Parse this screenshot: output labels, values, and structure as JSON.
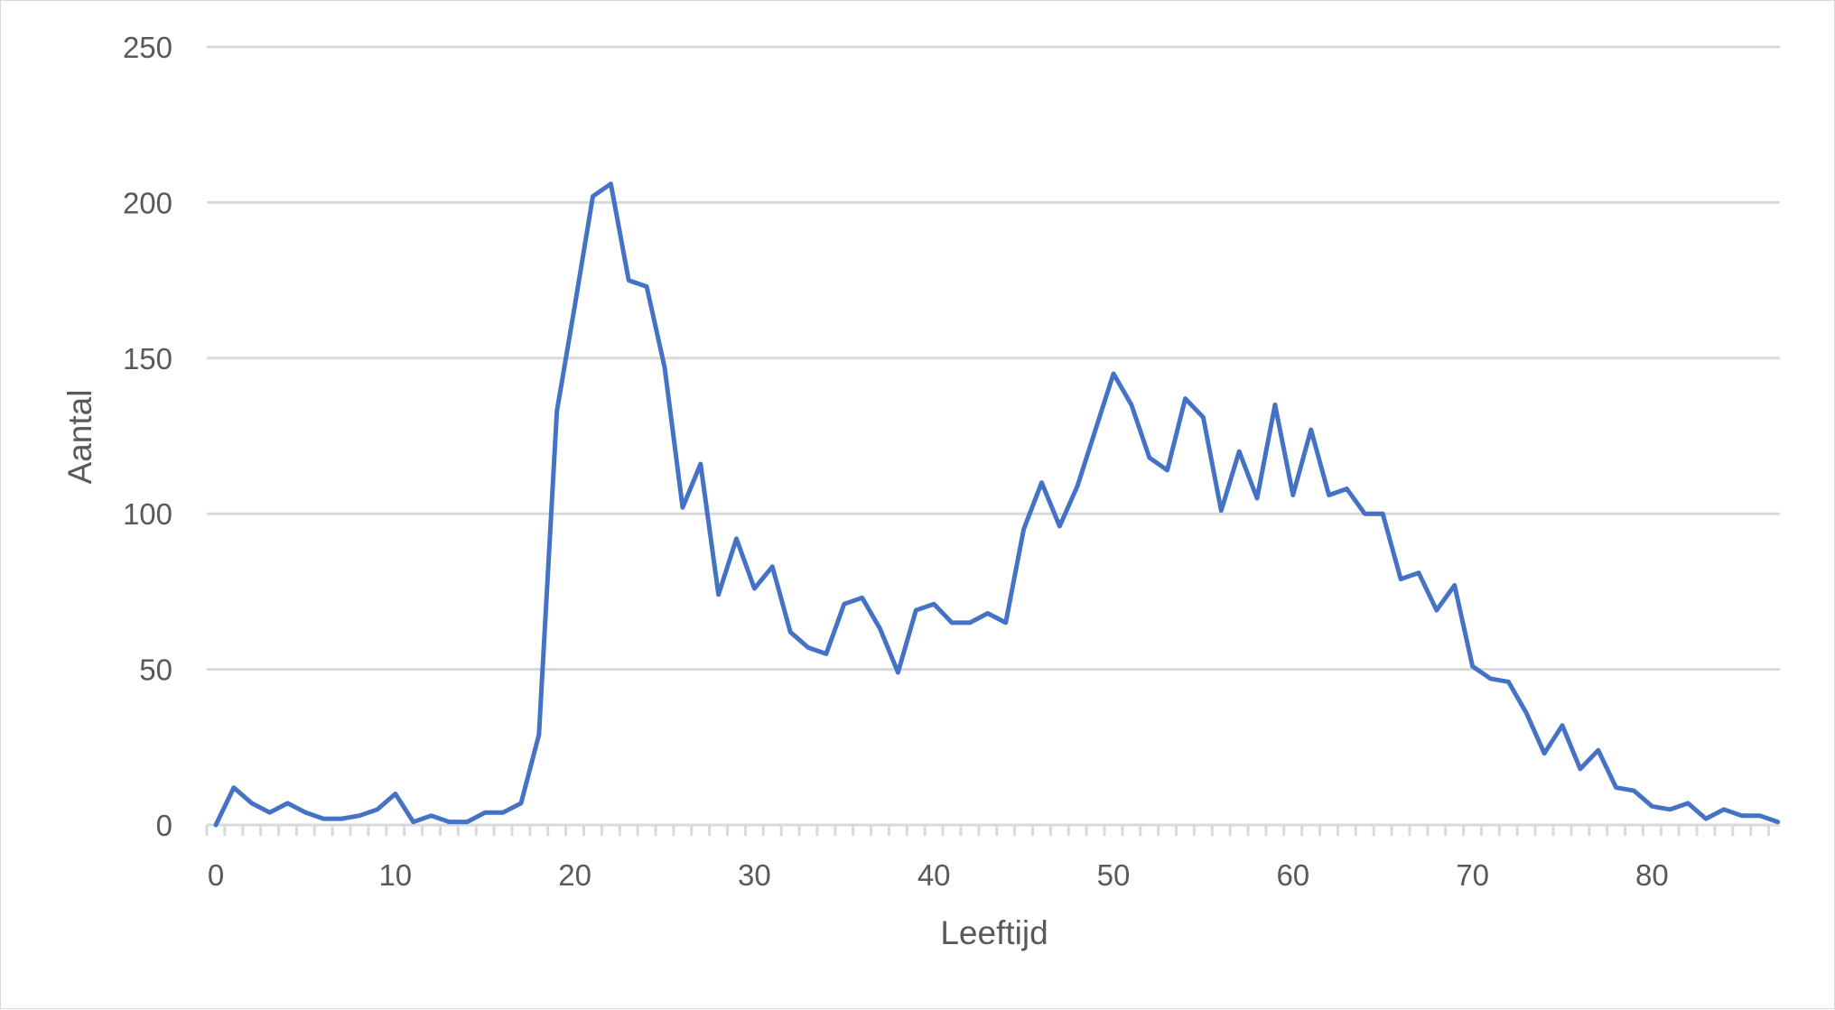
{
  "chart_data": {
    "type": "line",
    "title": "",
    "xlabel": "Leeftijd",
    "ylabel": "Aantal",
    "ylim": [
      0,
      250
    ],
    "xlim": [
      0,
      87
    ],
    "y_ticks": [
      0,
      50,
      100,
      150,
      200,
      250
    ],
    "x_ticks": [
      0,
      10,
      20,
      30,
      40,
      50,
      60,
      70,
      80
    ],
    "grid": true,
    "legend": null,
    "series": [
      {
        "name": "Aantal",
        "color": "#4472C4",
        "x": [
          0,
          1,
          2,
          3,
          4,
          5,
          6,
          7,
          8,
          9,
          10,
          11,
          12,
          13,
          14,
          15,
          16,
          17,
          18,
          19,
          20,
          21,
          22,
          23,
          24,
          25,
          26,
          27,
          28,
          29,
          30,
          31,
          32,
          33,
          34,
          35,
          36,
          37,
          38,
          39,
          40,
          41,
          42,
          43,
          44,
          45,
          46,
          47,
          48,
          49,
          50,
          51,
          52,
          53,
          54,
          55,
          56,
          57,
          58,
          59,
          60,
          61,
          62,
          63,
          64,
          65,
          66,
          67,
          68,
          69,
          70,
          71,
          72,
          73,
          74,
          75,
          76,
          77,
          78,
          79,
          80,
          81,
          82,
          83,
          84,
          85,
          86,
          87
        ],
        "values": [
          0,
          12,
          7,
          4,
          7,
          4,
          2,
          2,
          3,
          5,
          10,
          1,
          3,
          1,
          1,
          4,
          4,
          7,
          29,
          133,
          167,
          202,
          206,
          175,
          173,
          147,
          102,
          116,
          74,
          92,
          76,
          83,
          62,
          57,
          55,
          71,
          73,
          63,
          49,
          69,
          71,
          65,
          65,
          68,
          65,
          95,
          110,
          96,
          109,
          127,
          145,
          135,
          118,
          114,
          137,
          131,
          101,
          120,
          105,
          135,
          106,
          127,
          106,
          108,
          100,
          100,
          79,
          81,
          69,
          77,
          51,
          47,
          46,
          36,
          23,
          32,
          18,
          24,
          12,
          11,
          6,
          5,
          7,
          2,
          5,
          3,
          3,
          1
        ]
      }
    ]
  }
}
